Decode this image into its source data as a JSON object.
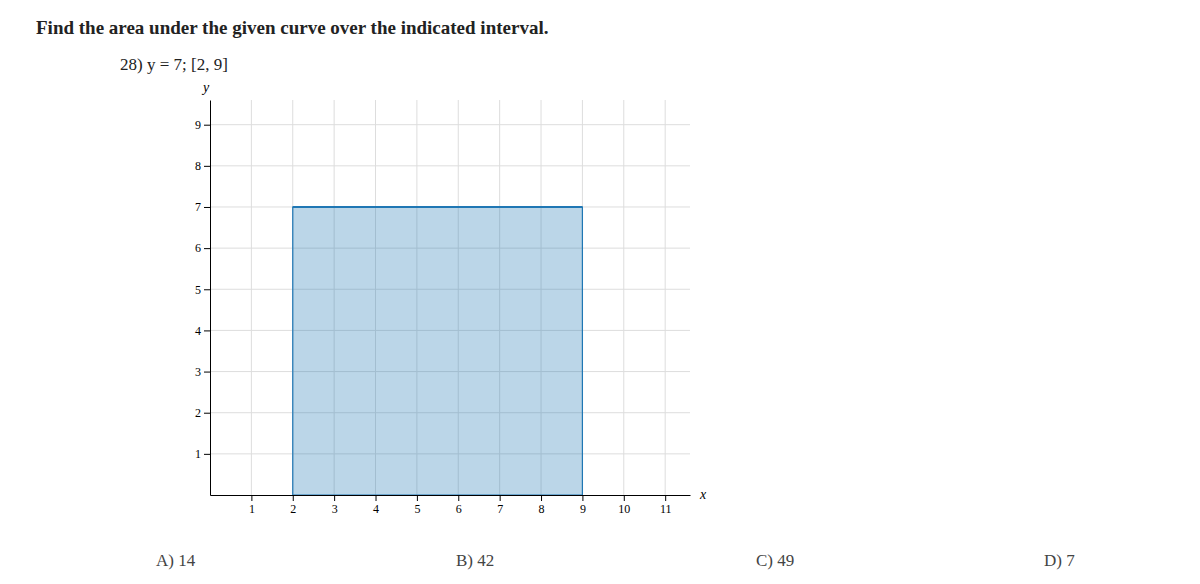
{
  "chart_data": {
    "type": "area",
    "title": "Find the area under the given curve over the indicated interval.",
    "subtitle": "28) y = 7;  [2, 9]",
    "x_label": "x",
    "y_label": "y",
    "x": [
      2,
      9
    ],
    "values": [
      7,
      7
    ],
    "xlim": [
      0,
      11.6
    ],
    "ylim": [
      0,
      9.6
    ],
    "xticks": [
      1,
      2,
      3,
      4,
      5,
      6,
      7,
      8,
      9,
      10,
      11
    ],
    "yticks": [
      1,
      2,
      3,
      4,
      5,
      6,
      7,
      8,
      9
    ],
    "grid": true,
    "annotations": [
      "A) 14",
      "B) 42",
      "C) 49",
      "D) 7"
    ]
  }
}
